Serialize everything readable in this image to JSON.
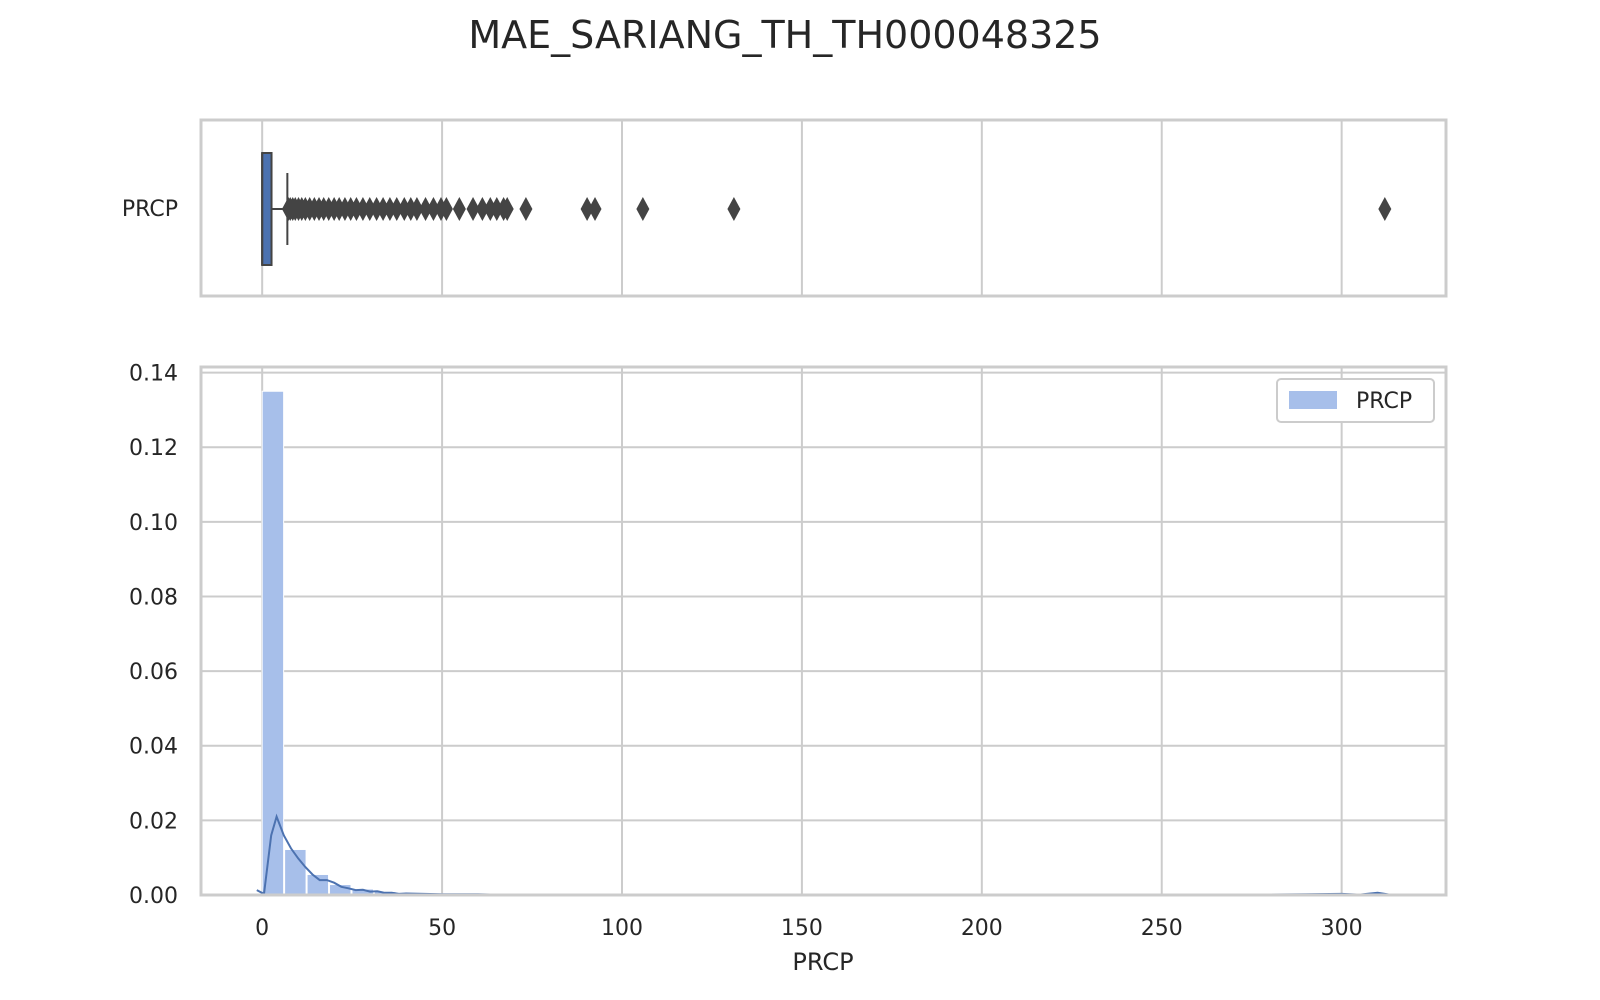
{
  "chart_data": [
    {
      "type": "box",
      "title": "MAE_SARIANG_TH_TH000048325",
      "series_label": "PRCP",
      "orientation": "horizontal",
      "xlim": [
        -17,
        329
      ],
      "box": {
        "q1": 0.0,
        "median": 0.0,
        "q3": 2.6,
        "whisker_low": 0.0,
        "whisker_high": 7.0
      },
      "outliers": [
        7.3,
        7.8,
        8.5,
        9.2,
        10.1,
        11.0,
        12.0,
        13.2,
        14.5,
        15.8,
        17.1,
        18.5,
        20.0,
        21.4,
        23.0,
        24.6,
        26.2,
        28.0,
        29.9,
        31.8,
        33.6,
        35.5,
        37.4,
        39.5,
        41.3,
        43.0,
        45.4,
        47.6,
        49.7,
        51.2,
        54.8,
        58.6,
        61.2,
        63.4,
        65.2,
        67.1,
        68.1,
        73.3,
        90.3,
        92.5,
        105.8,
        131.1,
        312.0
      ],
      "grid": true,
      "xticks": [
        0,
        50,
        100,
        150,
        200,
        250,
        300
      ],
      "gridlines_only": true
    },
    {
      "type": "histogram",
      "xlabel": "PRCP",
      "ylabel": "",
      "xlim": [
        -17,
        329
      ],
      "ylim": [
        0,
        0.1415
      ],
      "xticks": [
        0,
        50,
        100,
        150,
        200,
        250,
        300
      ],
      "xtick_labels": [
        "0",
        "50",
        "100",
        "150",
        "200",
        "250",
        "300"
      ],
      "yticks": [
        0,
        0.02,
        0.04,
        0.06,
        0.08,
        0.1,
        0.12,
        0.14
      ],
      "ytick_labels": [
        "0.00",
        "0.02",
        "0.04",
        "0.06",
        "0.08",
        "0.10",
        "0.12",
        "0.14"
      ],
      "grid": true,
      "legend": {
        "placement": "top-right",
        "entries": [
          "PRCP"
        ]
      },
      "bins": {
        "start": 0,
        "width": 6.24,
        "values": [
          0.135,
          0.0122,
          0.0055,
          0.0028,
          0.0016,
          0.0009,
          0.0006,
          0.0004,
          0.0003,
          0.0002,
          0.0002,
          0.0001,
          0.0001,
          0.0001,
          0.0001,
          0.0001,
          0.0001,
          0.0,
          0.0,
          0.0,
          0.0001,
          0.0,
          0.0,
          0.0,
          0.0,
          0.0,
          0.0,
          0.0,
          0.0,
          0.0,
          0.0,
          0.0,
          0.0,
          0.0,
          0.0,
          0.0,
          0.0,
          0.0,
          0.0,
          0.0,
          0.0,
          0.0,
          0.0,
          0.0,
          0.0,
          0.0,
          0.0,
          0.0,
          0.0,
          0.0001
        ]
      },
      "kde": {
        "x": [
          -1.5,
          0.5,
          2.5,
          4.0,
          6.0,
          8.0,
          10.0,
          12.0,
          14.0,
          16.0,
          18.0,
          20.0,
          22.0,
          24.0,
          26.0,
          28.0,
          30.0,
          32.0,
          34.0,
          36.0,
          38.0,
          40.0,
          45.0,
          50.0,
          55.0,
          60.0,
          65.0,
          70.0,
          80.0,
          90.0,
          100.0,
          120.0,
          140.0,
          160.0,
          200.0,
          250.0,
          290.0,
          300.0,
          305.0,
          310.0,
          312.0,
          314.0
        ],
        "y": [
          0.0013,
          0.0003,
          0.016,
          0.021,
          0.016,
          0.0125,
          0.0098,
          0.0075,
          0.0055,
          0.004,
          0.004,
          0.0033,
          0.0022,
          0.0018,
          0.0013,
          0.0014,
          0.0009,
          0.001,
          0.0006,
          0.0006,
          0.0003,
          0.0004,
          0.0003,
          0.0002,
          0.0002,
          0.0002,
          0.0001,
          0.0001,
          0.0001,
          0.0001,
          0.0001,
          0.0,
          0.0,
          0.0,
          0.0,
          0.0,
          0.0002,
          0.0003,
          0.0001,
          0.0006,
          0.0003,
          0.0
        ]
      },
      "colors": {
        "hist": "#a7bfea",
        "kde": "#4c72b0",
        "box": "#4c72b0",
        "outlier": "#444444"
      }
    }
  ]
}
